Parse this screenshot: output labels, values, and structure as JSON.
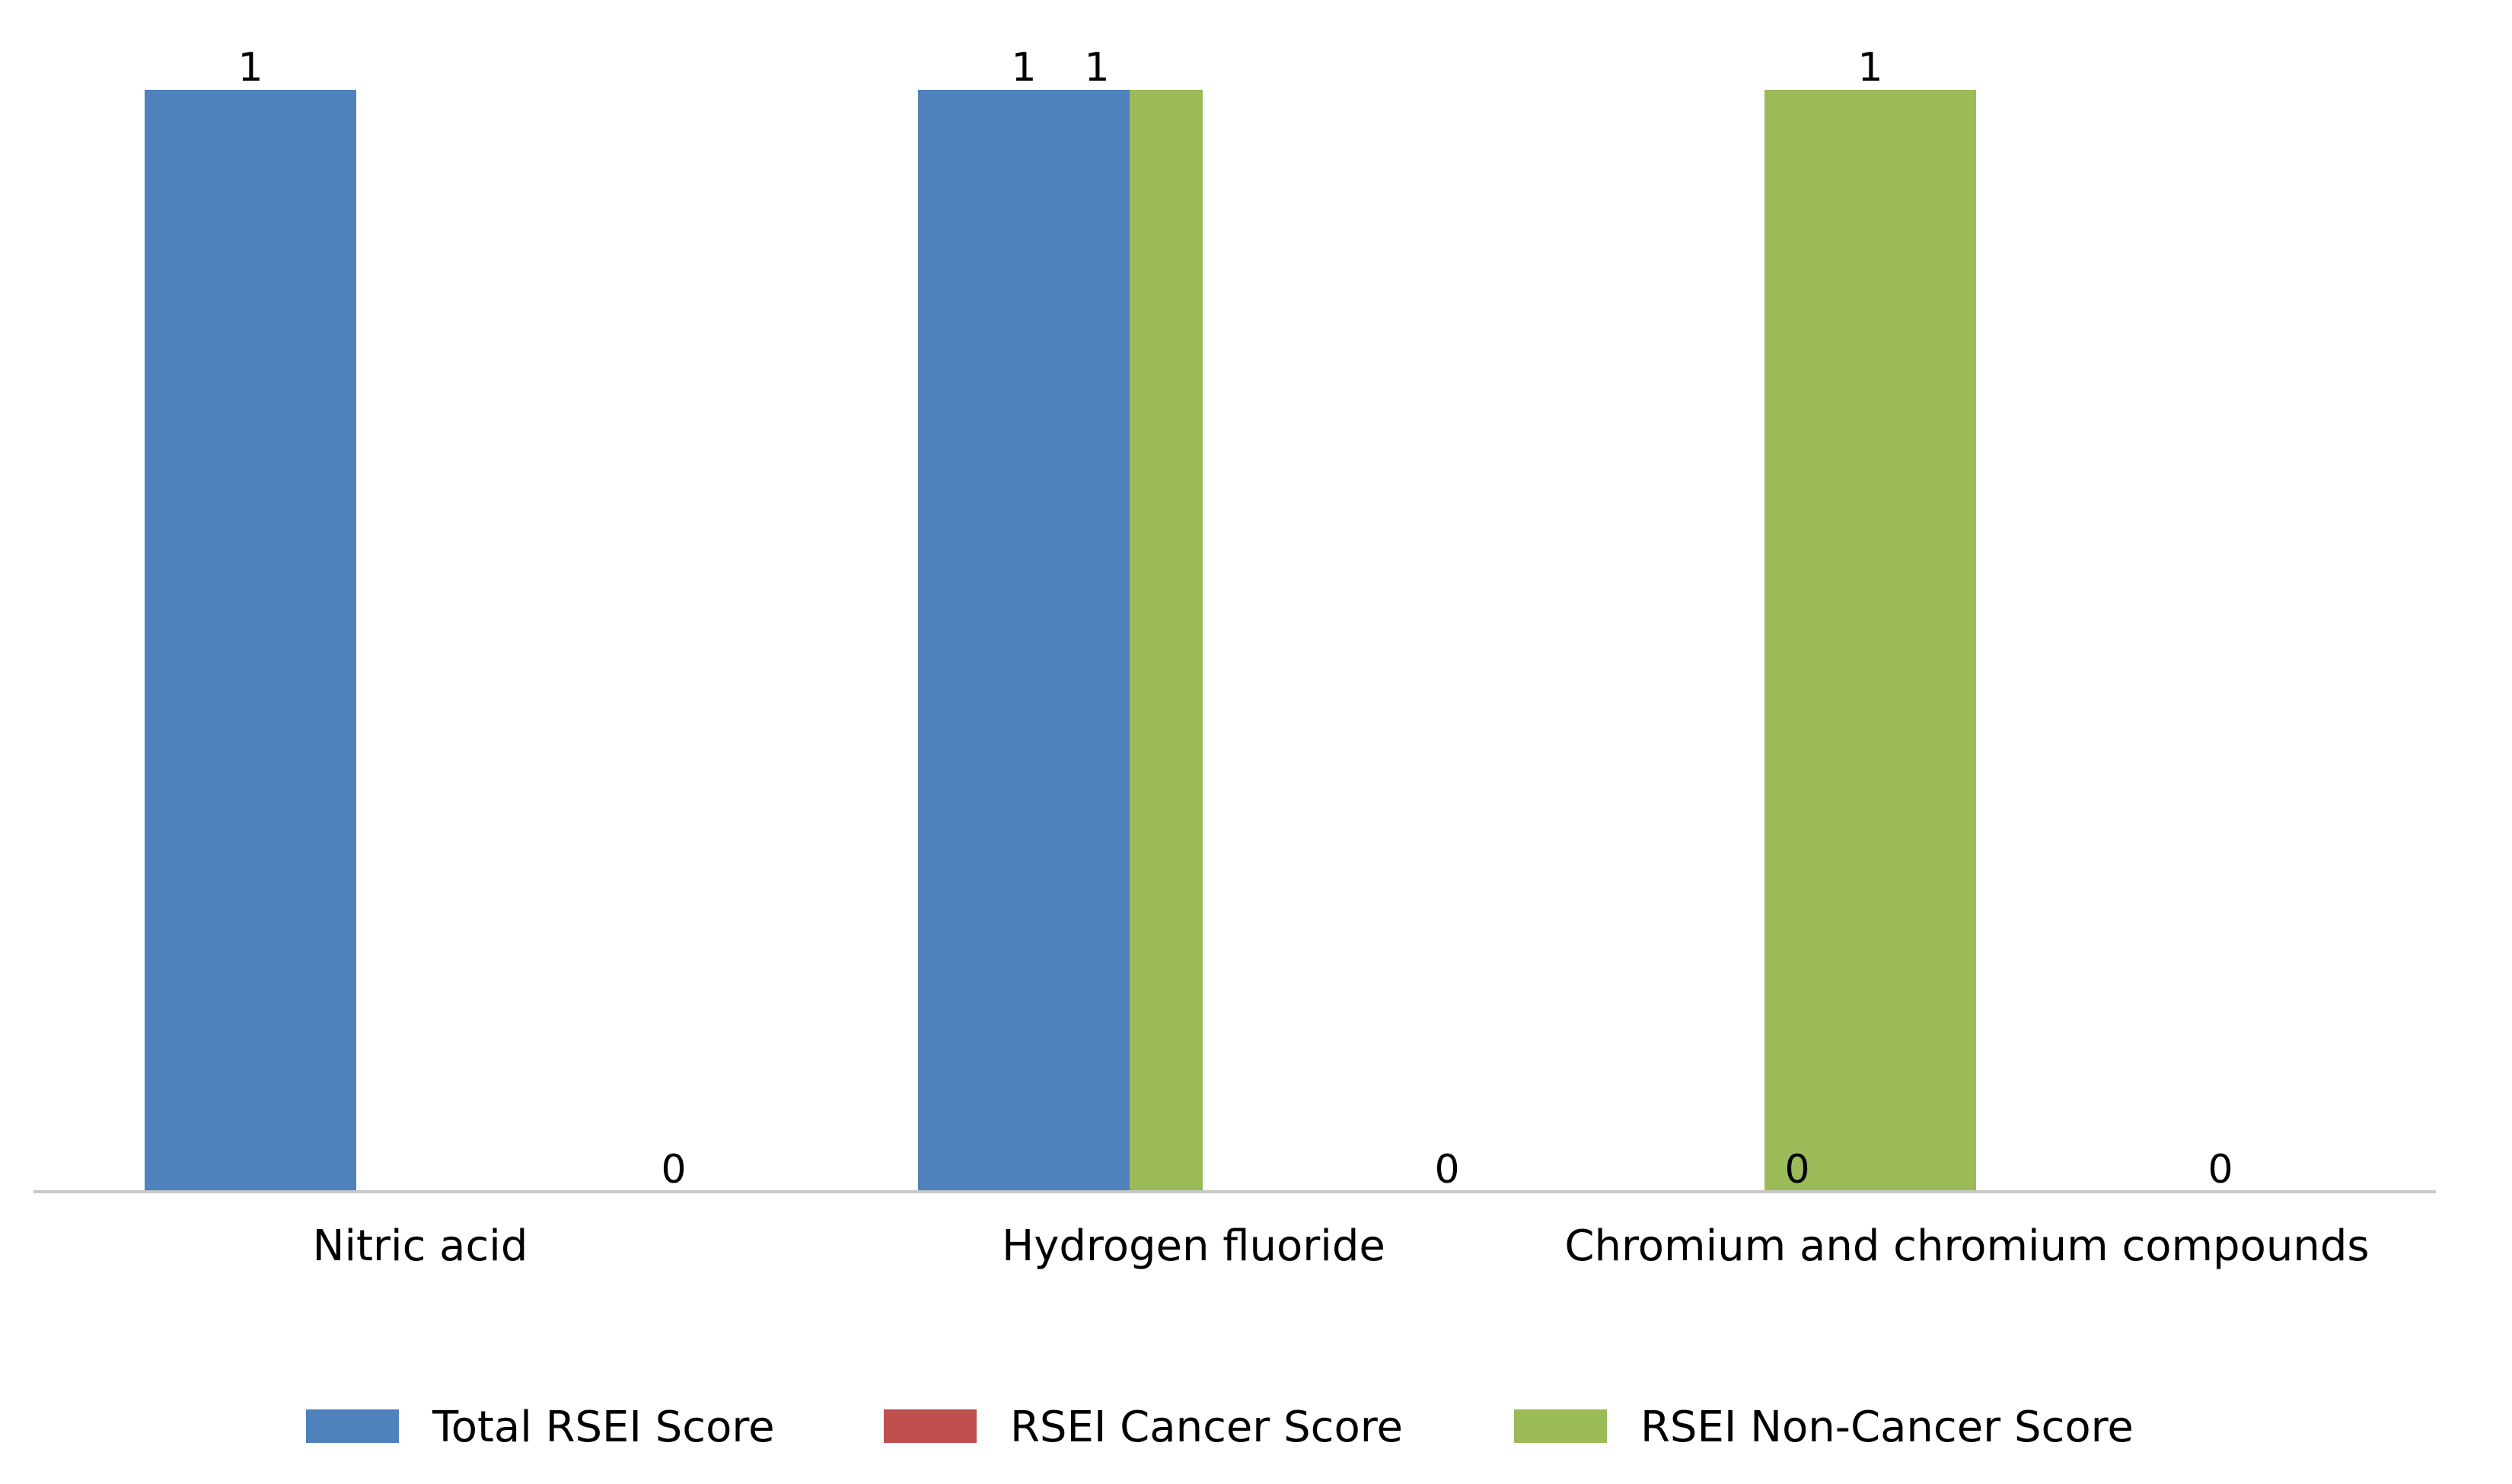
{
  "chart_data": {
    "type": "bar",
    "title": "",
    "xlabel": "",
    "ylabel": "",
    "ylim": [
      0,
      1
    ],
    "categories": [
      "Nitric acid",
      "Hydrogen fluoride",
      "Chromium and chromium compounds"
    ],
    "series": [
      {
        "name": "Total RSEI Score",
        "color": "#4f81bd",
        "values": [
          1,
          1,
          0
        ]
      },
      {
        "name": "RSEI Cancer Score",
        "color": "#c0504d",
        "values": [
          0,
          0,
          0
        ]
      },
      {
        "name": "RSEI Non-Cancer Score",
        "color": "#9bbb59",
        "values": [
          1,
          1,
          0
        ]
      }
    ],
    "grid": false,
    "data_labels": true,
    "legend": "bottom",
    "axis_line_color": "#c8c8c8"
  }
}
